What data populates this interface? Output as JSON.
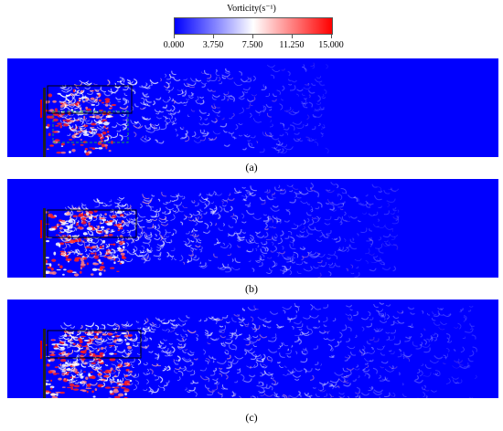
{
  "legend": {
    "title": "Vorticity(s⁻¹)",
    "ticks": [
      "0.000",
      "3.750",
      "7.500",
      "11.250",
      "15.000"
    ],
    "colors": {
      "low": "#0000ff",
      "mid": "#ffffff",
      "high": "#ff0000"
    }
  },
  "panels": [
    {
      "label": "(a)",
      "wake_extent": 0.62,
      "density": 0.55
    },
    {
      "label": "(b)",
      "wake_extent": 0.78,
      "density": 0.8
    },
    {
      "label": "(c)",
      "wake_extent": 0.95,
      "density": 0.95
    }
  ]
}
